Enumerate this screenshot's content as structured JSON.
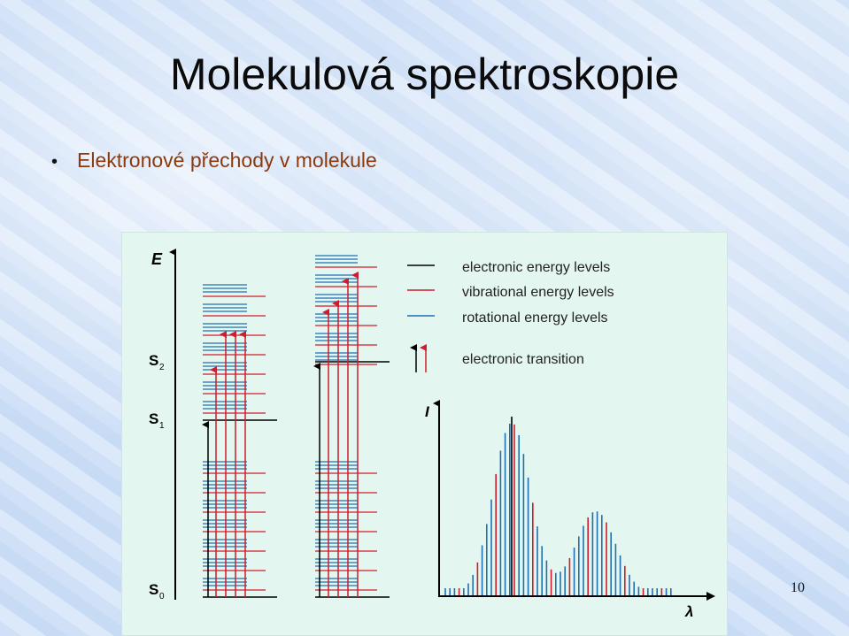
{
  "slide": {
    "title": "Molekulová spektroskopie",
    "bullet": "Elektronové přechody v molekule",
    "page_number": "10"
  },
  "diagram": {
    "energy_axis_label": "E",
    "states": [
      "S",
      "S",
      "S"
    ],
    "state_subscripts": [
      "2",
      "1",
      "0"
    ],
    "intensity_axis_label": "I",
    "wavelength_axis_label": "λ",
    "legend": [
      {
        "text": "electronic energy levels",
        "color": "#000000"
      },
      {
        "text": "vibrational energy levels",
        "color": "#d01c2c"
      },
      {
        "text": "rotational energy levels",
        "color": "#1f6fb2"
      },
      {
        "text": "electronic transition",
        "color": "#d01c2c"
      }
    ]
  },
  "colors": {
    "electronic": "#000000",
    "vibrational": "#d01c2c",
    "rotational": "#1f6fb2",
    "panel_bg": "#e3f6ef"
  }
}
